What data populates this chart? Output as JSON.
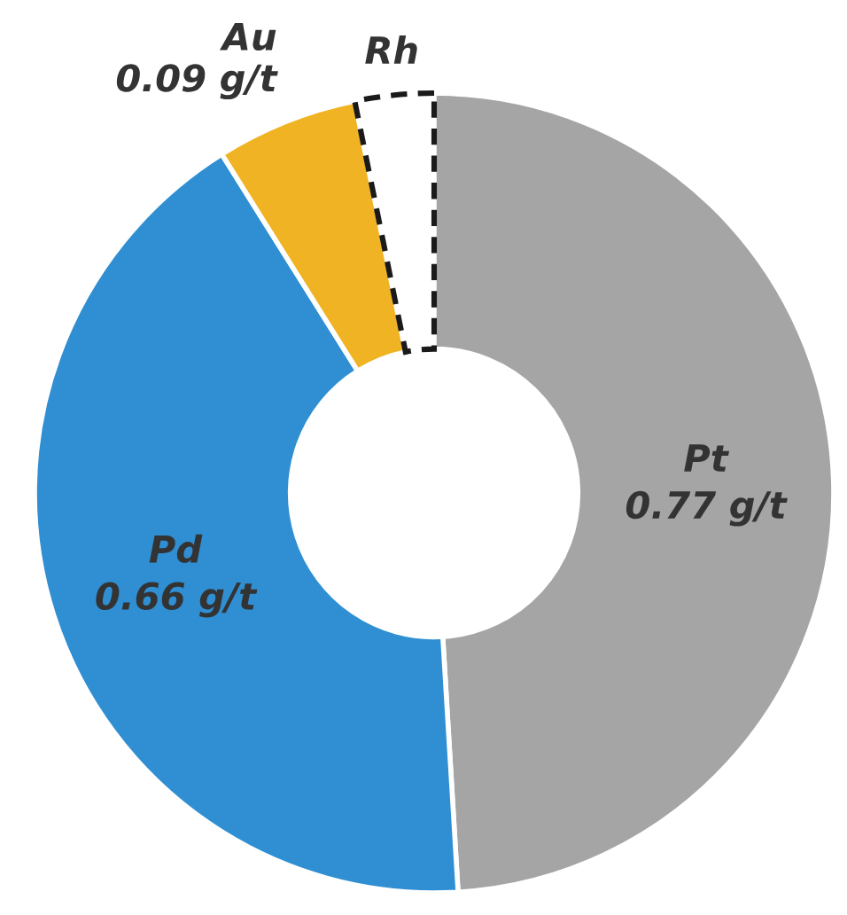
{
  "chart_data": {
    "type": "donut",
    "categories": [
      "Pt",
      "Pd",
      "Au",
      "Rh"
    ],
    "values": [
      0.77,
      0.66,
      0.09,
      0.05
    ],
    "value_labels": [
      "0.77 g/t",
      "0.66 g/t",
      "0.09 g/t",
      null
    ],
    "colors": [
      "#a5a5a5",
      "#2f8fd2",
      "#f0b323",
      "#ffffff"
    ],
    "legend": false
  }
}
